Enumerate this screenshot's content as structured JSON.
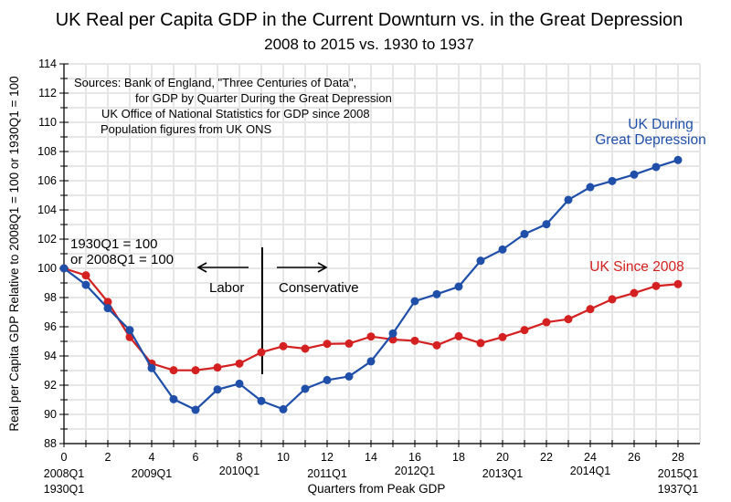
{
  "chart_data": {
    "type": "line",
    "title": "UK Real per Capita GDP in the Current Downturn vs. in the Great Depression",
    "subtitle": "2008 to 2015 vs. 1930 to 1937",
    "xlabel": "Quarters from Peak GDP",
    "ylabel": "Real per Capita GDP Relative to 2008Q1 = 100 or 1930Q1 = 100",
    "xlim": [
      0,
      29
    ],
    "ylim": [
      88,
      114
    ],
    "grid": true,
    "x_ticks": [
      0,
      2,
      4,
      6,
      8,
      10,
      12,
      14,
      16,
      18,
      20,
      22,
      24,
      26,
      28
    ],
    "y_ticks": [
      88,
      90,
      92,
      94,
      96,
      98,
      100,
      102,
      104,
      106,
      108,
      110,
      112,
      114
    ],
    "x_date_labels": [
      {
        "x": 0,
        "lines": [
          "2008Q1",
          "1930Q1"
        ]
      },
      {
        "x": 4,
        "lines": [
          "2009Q1"
        ]
      },
      {
        "x": 8,
        "lines": [
          "2010Q1"
        ]
      },
      {
        "x": 12,
        "lines": [
          "2011Q1"
        ]
      },
      {
        "x": 16,
        "lines": [
          "2012Q1"
        ]
      },
      {
        "x": 20,
        "lines": [
          "2013Q1"
        ]
      },
      {
        "x": 24,
        "lines": [
          "2014Q1"
        ]
      },
      {
        "x": 28,
        "lines": [
          "2015Q1",
          "1937Q1"
        ]
      }
    ],
    "x": [
      0,
      1,
      2,
      3,
      4,
      5,
      6,
      7,
      8,
      9,
      10,
      11,
      12,
      13,
      14,
      15,
      16,
      17,
      18,
      19,
      20,
      21,
      22,
      23,
      24,
      25,
      26,
      27,
      28
    ],
    "series": [
      {
        "name": "UK During Great Depression",
        "label_lines": [
          "UK During",
          "Great Depression"
        ],
        "color": "#1f4fa8",
        "values": [
          100.0,
          98.87,
          97.27,
          95.77,
          93.17,
          91.04,
          90.31,
          91.7,
          92.1,
          90.92,
          90.35,
          91.75,
          92.35,
          92.6,
          93.63,
          95.54,
          97.75,
          98.23,
          98.75,
          100.52,
          101.29,
          102.35,
          103.02,
          104.69,
          105.56,
          105.98,
          106.42,
          106.94,
          107.42
        ]
      },
      {
        "name": "UK Since 2008",
        "label_lines": [
          "UK Since 2008"
        ],
        "color": "#d42020",
        "values": [
          100.0,
          99.52,
          97.7,
          95.29,
          93.48,
          93.02,
          93.02,
          93.21,
          93.48,
          94.25,
          94.67,
          94.5,
          94.83,
          94.85,
          95.33,
          95.13,
          95.04,
          94.73,
          95.35,
          94.88,
          95.29,
          95.77,
          96.31,
          96.52,
          97.21,
          97.88,
          98.31,
          98.79,
          98.92
        ]
      }
    ],
    "annotations": {
      "sources": [
        "Sources:  Bank of England, \"Three Centuries of Data\",",
        "for GDP by Quarter During the Great Depression",
        "UK Office of National Statistics for GDP since 2008",
        "Population figures from UK ONS"
      ],
      "base_note": [
        "1930Q1 = 100",
        "or 2008Q1 = 100"
      ],
      "divider_at_quarter": 9,
      "left_party": "Labor",
      "right_party": "Conservative"
    }
  }
}
